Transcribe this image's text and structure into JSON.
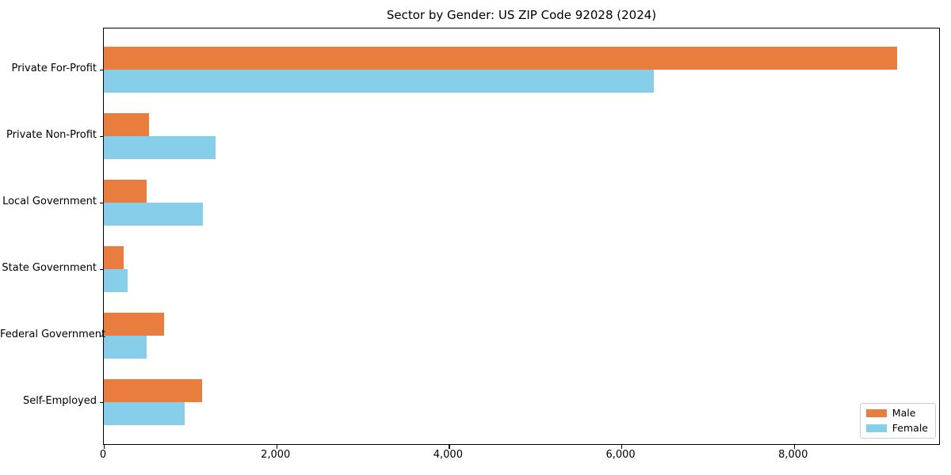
{
  "chart_data": {
    "type": "bar",
    "orientation": "horizontal",
    "title": "Sector by Gender: US ZIP Code 92028 (2024)",
    "xlabel": "",
    "ylabel": "",
    "categories": [
      "Private For-Profit",
      "Private Non-Profit",
      "Local Government",
      "State Government",
      "Federal Government",
      "Self-Employed"
    ],
    "series": [
      {
        "name": "Male",
        "color": "#E87D3E",
        "values": [
          9200,
          520,
          500,
          230,
          700,
          1140
        ]
      },
      {
        "name": "Female",
        "color": "#87CEEB",
        "values": [
          6375,
          1300,
          1150,
          280,
          500,
          940
        ]
      }
    ],
    "xlim": [
      0,
      9680
    ],
    "xticks": [
      0,
      2000,
      4000,
      6000,
      8000
    ],
    "xtick_labels": [
      "0",
      "2,000",
      "4,000",
      "6,000",
      "8,000"
    ],
    "grid": false,
    "background": "#ffffff",
    "axis_color": "#000000",
    "legend": {
      "position": "lower right",
      "entries": [
        "Male",
        "Female"
      ]
    }
  }
}
